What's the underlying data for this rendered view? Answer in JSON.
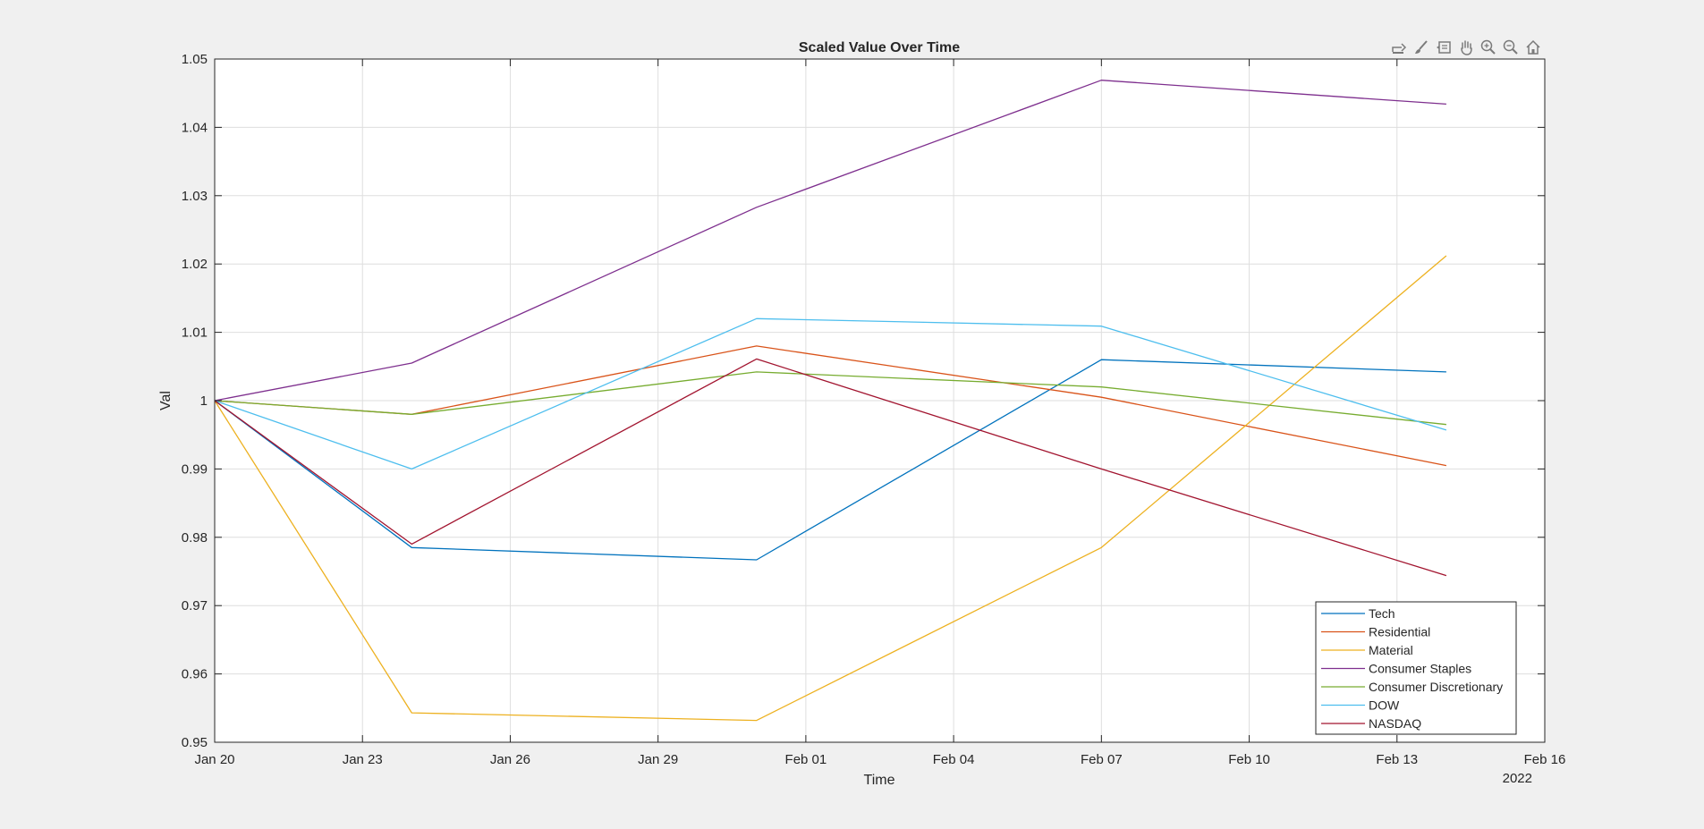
{
  "toolbar": {
    "icons": [
      "export-icon",
      "brush-icon",
      "datatip-icon",
      "pan-icon",
      "zoom-in-icon",
      "zoom-out-icon",
      "home-icon"
    ]
  },
  "chart_data": {
    "type": "line",
    "title": "Scaled Value Over Time",
    "xlabel": "Time",
    "ylabel": "Val",
    "x_year_label": "2022",
    "ylim": [
      0.95,
      1.05
    ],
    "xlim": [
      "2022-01-20",
      "2022-02-16"
    ],
    "x_ticks": [
      {
        "date": "2022-01-20",
        "label": "Jan 20"
      },
      {
        "date": "2022-01-23",
        "label": "Jan 23"
      },
      {
        "date": "2022-01-26",
        "label": "Jan 26"
      },
      {
        "date": "2022-01-29",
        "label": "Jan 29"
      },
      {
        "date": "2022-02-01",
        "label": "Feb 01"
      },
      {
        "date": "2022-02-04",
        "label": "Feb 04"
      },
      {
        "date": "2022-02-07",
        "label": "Feb 07"
      },
      {
        "date": "2022-02-10",
        "label": "Feb 10"
      },
      {
        "date": "2022-02-13",
        "label": "Feb 13"
      },
      {
        "date": "2022-02-16",
        "label": "Feb 16"
      }
    ],
    "y_ticks": [
      "0.95",
      "0.96",
      "0.97",
      "0.98",
      "0.99",
      "1",
      "1.01",
      "1.02",
      "1.03",
      "1.04",
      "1.05"
    ],
    "grid": true,
    "legend_position": "bottom-right",
    "x": [
      "2022-01-20",
      "2022-01-24",
      "2022-01-31",
      "2022-02-07",
      "2022-02-14"
    ],
    "series": [
      {
        "name": "Tech",
        "color": "#0072bd",
        "values": [
          1.0,
          0.9785,
          0.9767,
          1.006,
          1.0042
        ]
      },
      {
        "name": "Residential",
        "color": "#d95319",
        "values": [
          1.0,
          0.998,
          1.008,
          1.0005,
          0.9905
        ]
      },
      {
        "name": "Material",
        "color": "#edb120",
        "values": [
          1.0,
          0.9543,
          0.9532,
          0.9785,
          1.0212
        ]
      },
      {
        "name": "Consumer Staples",
        "color": "#7e2f8e",
        "values": [
          1.0,
          1.0055,
          1.0283,
          1.0469,
          1.0434
        ]
      },
      {
        "name": "Consumer Discretionary",
        "color": "#77ac30",
        "values": [
          1.0,
          0.998,
          1.0042,
          1.002,
          0.9965
        ]
      },
      {
        "name": "DOW",
        "color": "#4dbeee",
        "values": [
          1.0,
          0.99,
          1.012,
          1.0109,
          0.9957
        ]
      },
      {
        "name": "NASDAQ",
        "color": "#a2142f",
        "values": [
          1.0,
          0.979,
          1.0061,
          0.99,
          0.9744
        ]
      }
    ]
  }
}
